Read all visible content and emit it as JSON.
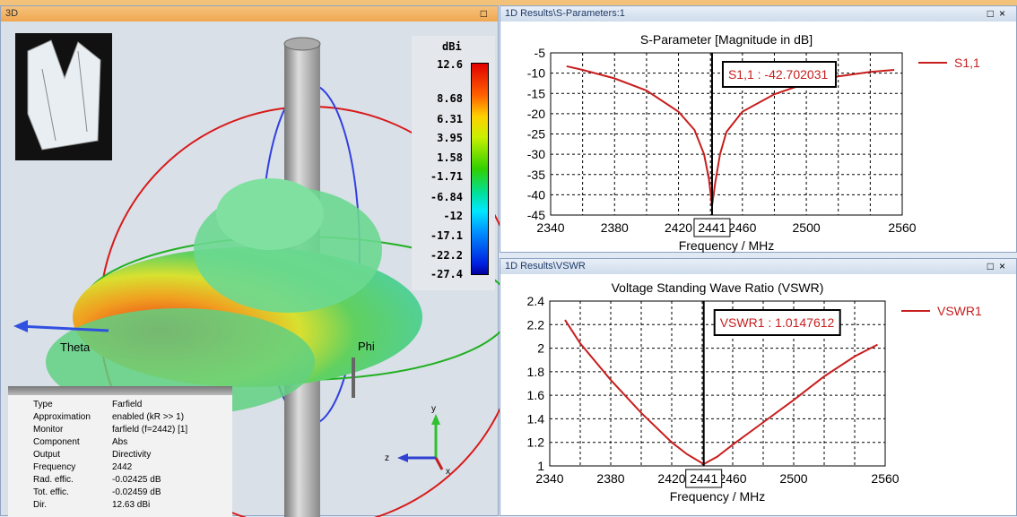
{
  "view3d": {
    "title": "3D",
    "colorbar": {
      "unit": "dBi",
      "labels": [
        "12.6",
        "8.68",
        "6.31",
        "3.95",
        "1.58",
        "-1.71",
        "-6.84",
        "-12",
        "-17.1",
        "-22.2",
        "-27.4"
      ]
    },
    "axis_labels": {
      "theta": "Theta",
      "phi": "Phi",
      "x": "x",
      "y": "y",
      "z": "z"
    },
    "info": [
      [
        "Type",
        "Farfield"
      ],
      [
        "Approximation",
        "enabled (kR >> 1)"
      ],
      [
        "Monitor",
        "farfield (f=2442) [1]"
      ],
      [
        "Component",
        "Abs"
      ],
      [
        "Output",
        "Directivity"
      ],
      [
        "Frequency",
        "2442"
      ],
      [
        "Rad. effic.",
        "-0.02425 dB"
      ],
      [
        "Tot. effic.",
        "-0.02459 dB"
      ],
      [
        "Dir.",
        "12.63 dBi"
      ]
    ]
  },
  "sparam_panel": {
    "title": "1D Results\\S-Parameters:1",
    "max_icon": "□",
    "close_icon": "×"
  },
  "vswr_panel": {
    "title": "1D Results\\VSWR",
    "max_icon": "□",
    "close_icon": "×"
  },
  "chart_data": [
    {
      "type": "line",
      "title": "S-Parameter [Magnitude in dB]",
      "xlabel": "Frequency / MHz",
      "ylabel": "",
      "xlim": [
        2340,
        2560
      ],
      "ylim": [
        -45,
        -5
      ],
      "xticks": [
        "2340",
        "2380",
        "2420",
        "2460",
        "2500",
        "2560"
      ],
      "yticks": [
        "-5",
        "-10",
        "-15",
        "-20",
        "-25",
        "-30",
        "-35",
        "-40",
        "-45"
      ],
      "series": [
        {
          "name": "S1,1",
          "color": "#c81e1e",
          "x": [
            2350,
            2360,
            2380,
            2400,
            2420,
            2430,
            2436,
            2439,
            2441,
            2443,
            2446,
            2450,
            2460,
            2480,
            2500,
            2520,
            2540,
            2555
          ],
          "y": [
            -8.3,
            -9.2,
            -11.3,
            -14.3,
            -19.5,
            -24,
            -30,
            -36,
            -42.7,
            -37,
            -30,
            -24.5,
            -19.5,
            -15.2,
            -12.5,
            -10.8,
            -9.7,
            -9.2
          ]
        }
      ],
      "marker": {
        "x": "2441",
        "label": "S1,1 : -42.702031"
      },
      "legend": "right"
    },
    {
      "type": "line",
      "title": "Voltage Standing Wave Ratio (VSWR)",
      "xlabel": "Frequency / MHz",
      "ylabel": "",
      "xlim": [
        2340,
        2560
      ],
      "ylim": [
        1,
        2.4
      ],
      "xticks": [
        "2340",
        "2380",
        "2420",
        "2460",
        "2500",
        "2560"
      ],
      "yticks": [
        "1",
        "1.2",
        "1.4",
        "1.6",
        "1.8",
        "2",
        "2.2",
        "2.4"
      ],
      "series": [
        {
          "name": "VSWR1",
          "color": "#c81e1e",
          "x": [
            2350,
            2360,
            2380,
            2400,
            2420,
            2430,
            2441,
            2450,
            2460,
            2480,
            2500,
            2520,
            2540,
            2555
          ],
          "y": [
            2.24,
            2.04,
            1.73,
            1.45,
            1.2,
            1.1,
            1.015,
            1.08,
            1.18,
            1.37,
            1.56,
            1.76,
            1.93,
            2.03
          ]
        }
      ],
      "marker": {
        "x": "2441",
        "label": "VSWR1 : 1.0147612"
      },
      "legend": "right"
    }
  ]
}
